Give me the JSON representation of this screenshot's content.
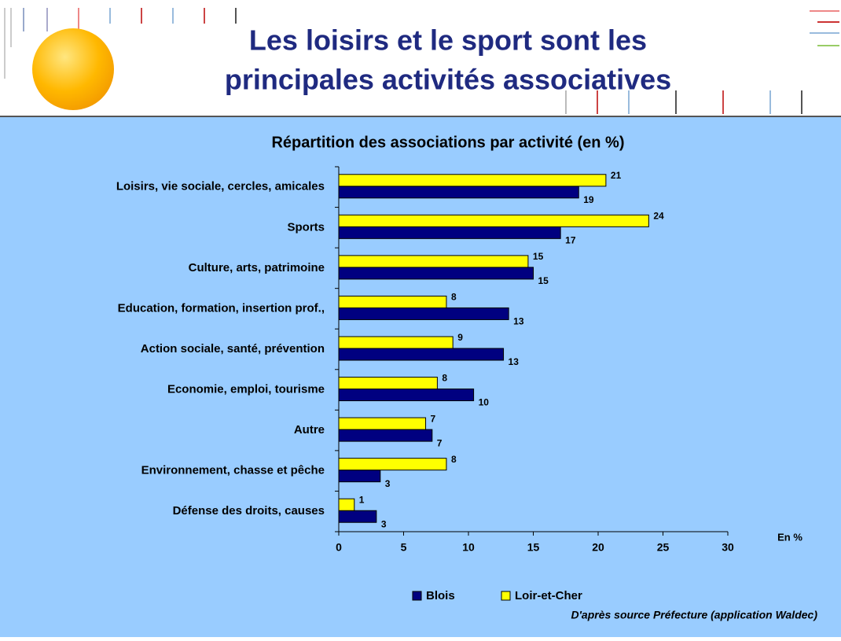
{
  "slide_title_lines": [
    "Les loisirs et le sport sont les",
    "principales activités associatives"
  ],
  "chart_data": {
    "type": "bar",
    "orientation": "horizontal",
    "title": "Répartition des associations par activité (en %)",
    "categories": [
      "Loisirs, vie sociale, cercles, amicales",
      "Sports",
      "Culture, arts, patrimoine",
      "Education, formation, insertion prof.,",
      "Action sociale, santé, prévention",
      "Economie, emploi, tourisme",
      "Autre",
      "Environnement, chasse et pêche",
      "Défense des droits, causes"
    ],
    "series": [
      {
        "name": "Blois",
        "color": "#000080",
        "values": [
          18.5,
          17.1,
          15.0,
          13.1,
          12.7,
          10.4,
          7.2,
          3.2,
          2.9
        ],
        "value_labels": [
          "19",
          "17",
          "15",
          "13",
          "13",
          "10",
          "7",
          "3",
          "3"
        ]
      },
      {
        "name": "Loir-et-Cher",
        "color": "#FFFF00",
        "values": [
          20.6,
          23.9,
          14.6,
          8.3,
          8.8,
          7.6,
          6.7,
          8.3,
          1.2
        ],
        "value_labels": [
          "21",
          "24",
          "15",
          "8",
          "9",
          "8",
          "7",
          "8",
          "1"
        ]
      }
    ],
    "xlim": [
      0,
      30
    ],
    "xticks": [
      0,
      5,
      10,
      15,
      20,
      25,
      30
    ],
    "x_label": "En %",
    "source": "D'après source Préfecture (application Waldec)"
  }
}
